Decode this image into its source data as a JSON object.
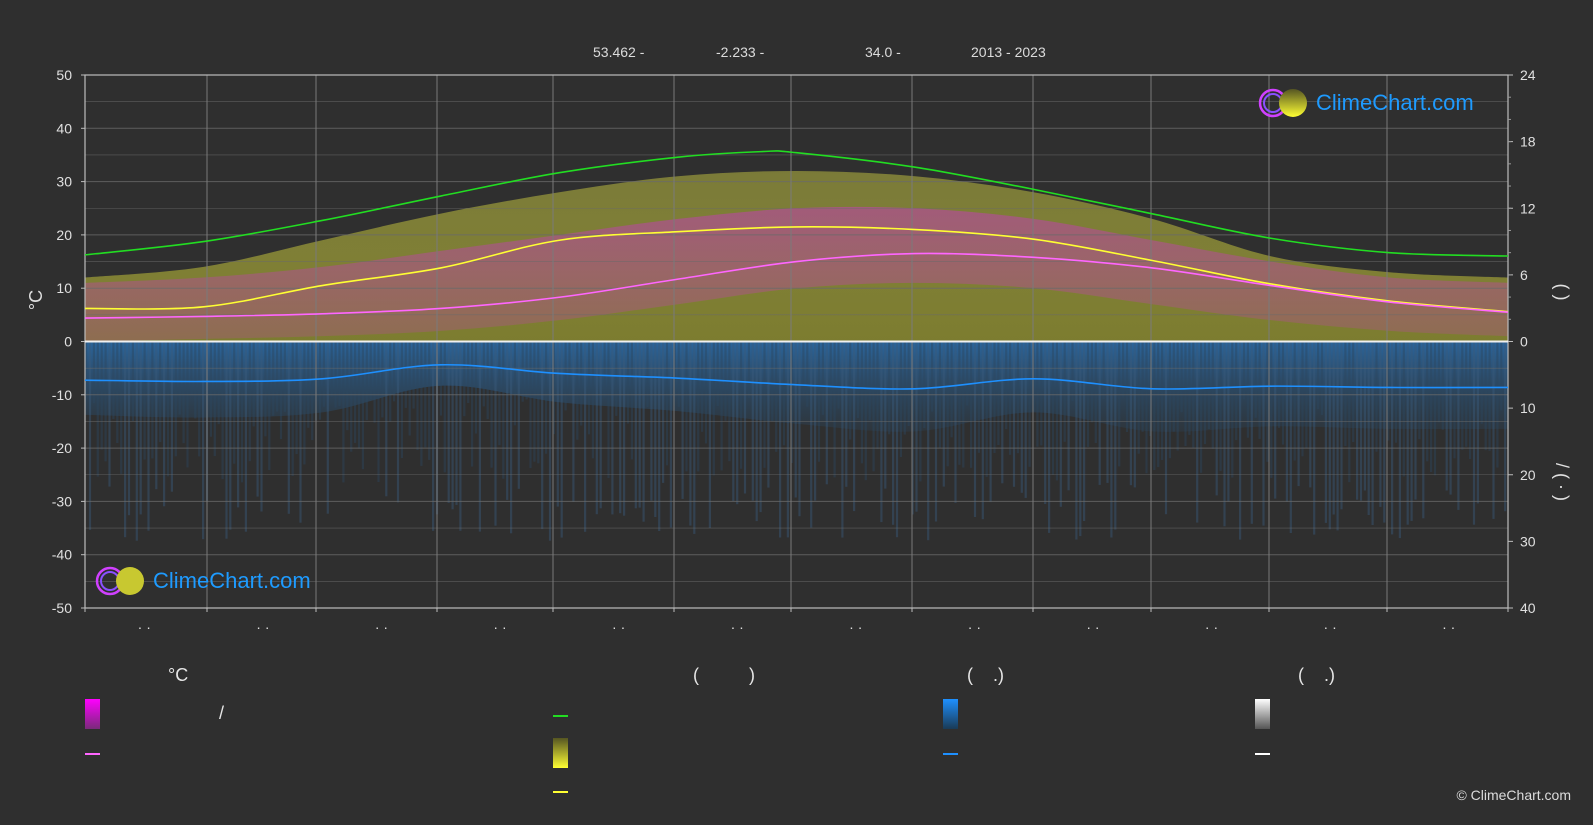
{
  "header": {
    "lat": "53.462 -",
    "lon": "-2.233 -",
    "elev": "34.0 -",
    "years": "2013 - 2023"
  },
  "colors": {
    "background": "#2f2f2f",
    "daylight_line": "#22dd22",
    "sunshine_line": "#ffff33",
    "sunshine_band": "#c8c83c",
    "temp_band": "#e040c8",
    "temp_mean_line": "#ff66ff",
    "rain_band": "#2a6fb0",
    "rain_line": "#1e90ff",
    "snow_band": "#888888",
    "accent": "#1e9bff"
  },
  "chart_data": {
    "type": "area",
    "months_x": [
      0.5,
      1.5,
      2.5,
      3.5,
      4.5,
      5.5,
      6.5,
      7.5,
      8.5,
      9.5,
      10.5,
      11.5
    ],
    "x_tick_labels": [
      "· ·",
      "· ·",
      "· ·",
      "· ·",
      "· ·",
      "· ·",
      "· ·",
      "· ·",
      "· ·",
      "· ·",
      "· ·",
      "· ·"
    ],
    "left_axis": {
      "label": "°C",
      "ylim": [
        -50,
        50
      ],
      "ticks": [
        50,
        40,
        30,
        20,
        10,
        0,
        -10,
        -20,
        -30,
        -40,
        -50
      ]
    },
    "right_axis_top": {
      "label": "(   )",
      "ylim": [
        0,
        24
      ],
      "ticks": [
        24,
        18,
        12,
        6,
        0
      ]
    },
    "right_axis_bottom": {
      "label": "/ (   ·   )",
      "ylim": [
        0,
        40
      ],
      "ticks": [
        10,
        20,
        30,
        40
      ]
    },
    "grid": true,
    "series": [
      {
        "key": "daylight",
        "axis": "hours",
        "x": [
          0,
          1,
          2,
          3,
          4,
          5,
          5.7,
          6,
          7,
          8,
          9,
          10,
          11,
          12
        ],
        "values": [
          7.8,
          9.0,
          10.9,
          13.1,
          15.2,
          16.6,
          17.1,
          17.0,
          15.7,
          13.7,
          11.5,
          9.3,
          8.0,
          7.7
        ]
      },
      {
        "key": "sunshine_mean",
        "axis": "temp_scale",
        "x": [
          0,
          1,
          2,
          3,
          4,
          5,
          6,
          7,
          8,
          9,
          10,
          11,
          12
        ],
        "values": [
          6.2,
          6.5,
          10.5,
          13.8,
          19.0,
          20.6,
          21.5,
          21.0,
          19.2,
          15.2,
          10.8,
          7.6,
          5.6
        ]
      },
      {
        "key": "temp_mean",
        "axis": "celsius",
        "x": [
          0,
          1,
          2,
          3,
          4,
          5,
          6,
          7,
          8,
          9,
          10,
          11,
          12
        ],
        "values": [
          4.4,
          4.7,
          5.2,
          6.2,
          8.3,
          11.7,
          15.0,
          16.5,
          15.8,
          13.8,
          10.5,
          7.4,
          5.5
        ]
      },
      {
        "key": "rain_mean",
        "axis": "mm",
        "x": [
          0,
          1,
          2,
          3,
          4,
          5,
          6,
          7,
          8,
          9,
          10,
          11,
          12
        ],
        "values": [
          5.8,
          6.0,
          5.6,
          3.5,
          4.8,
          5.5,
          6.5,
          7.1,
          5.6,
          7.1,
          6.7,
          6.9,
          6.9
        ]
      }
    ],
    "temp_band": {
      "x": [
        0,
        1,
        2,
        3,
        4,
        5,
        6,
        7,
        8,
        9,
        10,
        11,
        12
      ],
      "low": [
        0,
        0.5,
        1,
        2,
        4,
        7,
        10,
        11,
        10,
        7,
        4,
        2,
        1
      ],
      "high": [
        11,
        12,
        14,
        17,
        20,
        23,
        25,
        25,
        23,
        19,
        15,
        12,
        11
      ]
    },
    "sunshine_band_top": {
      "x": [
        0,
        1,
        2,
        3,
        4,
        5,
        6,
        7,
        8,
        9,
        10,
        11,
        12
      ],
      "values": [
        12,
        14,
        19,
        24,
        28,
        31,
        32,
        31,
        28,
        23,
        16,
        13,
        12
      ]
    }
  },
  "logos": {
    "text": "ClimeChart.com"
  },
  "legend": {
    "columns": [
      {
        "header": "°C",
        "items": [
          {
            "slash": "/"
          }
        ]
      },
      {
        "header": "(          )"
      },
      {
        "header": "(    .)"
      },
      {
        "header": "(    .)"
      }
    ]
  },
  "copyright": "© ClimeChart.com"
}
